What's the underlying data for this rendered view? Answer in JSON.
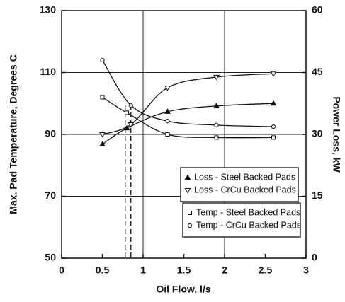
{
  "chart_data": {
    "type": "line",
    "xlabel": "Oil Flow, l/s",
    "ylabel": "Max. Pad Temperature, Degrees C",
    "y2label": "Power Loss, kW",
    "xlim": [
      0,
      3
    ],
    "xticks": [
      0,
      0.5,
      1,
      1.5,
      2,
      2.5,
      3
    ],
    "ylim": [
      50,
      130
    ],
    "yticks": [
      50,
      70,
      90,
      110,
      130
    ],
    "y2lim": [
      0,
      60
    ],
    "y2ticks": [
      0,
      15,
      30,
      45,
      60
    ],
    "grid": true,
    "reference_lines": [
      0.78,
      0.85
    ],
    "series": [
      {
        "name": "Loss - Steel Backed Pads",
        "color": "#111111",
        "marker": "triangle",
        "axis": "y2",
        "x": [
          0.5,
          0.8,
          1.3,
          1.9,
          2.6
        ],
        "values": [
          27.6,
          31.5,
          35.5,
          36.9,
          37.5
        ]
      },
      {
        "name": "Loss - CrCu Backed Pads",
        "color": "#111111",
        "marker": "triangle-down",
        "axis": "y2",
        "x": [
          0.5,
          0.85,
          1.3,
          1.9,
          2.6
        ],
        "values": [
          30,
          32.4,
          41.3,
          43.9,
          44.7
        ]
      },
      {
        "name": "Temp - Steel Backed Pads",
        "color": "#111111",
        "marker": "square",
        "axis": "y",
        "x": [
          0.5,
          0.8,
          1.3,
          1.9,
          2.6
        ],
        "values": [
          102,
          97,
          90,
          89,
          89
        ]
      },
      {
        "name": "Temp - CrCu Backed Pads",
        "color": "#111111",
        "marker": "circle",
        "axis": "y",
        "x": [
          0.5,
          0.85,
          1.3,
          1.9,
          2.6
        ],
        "values": [
          114,
          99.4,
          94.3,
          93,
          92.5
        ]
      }
    ]
  }
}
